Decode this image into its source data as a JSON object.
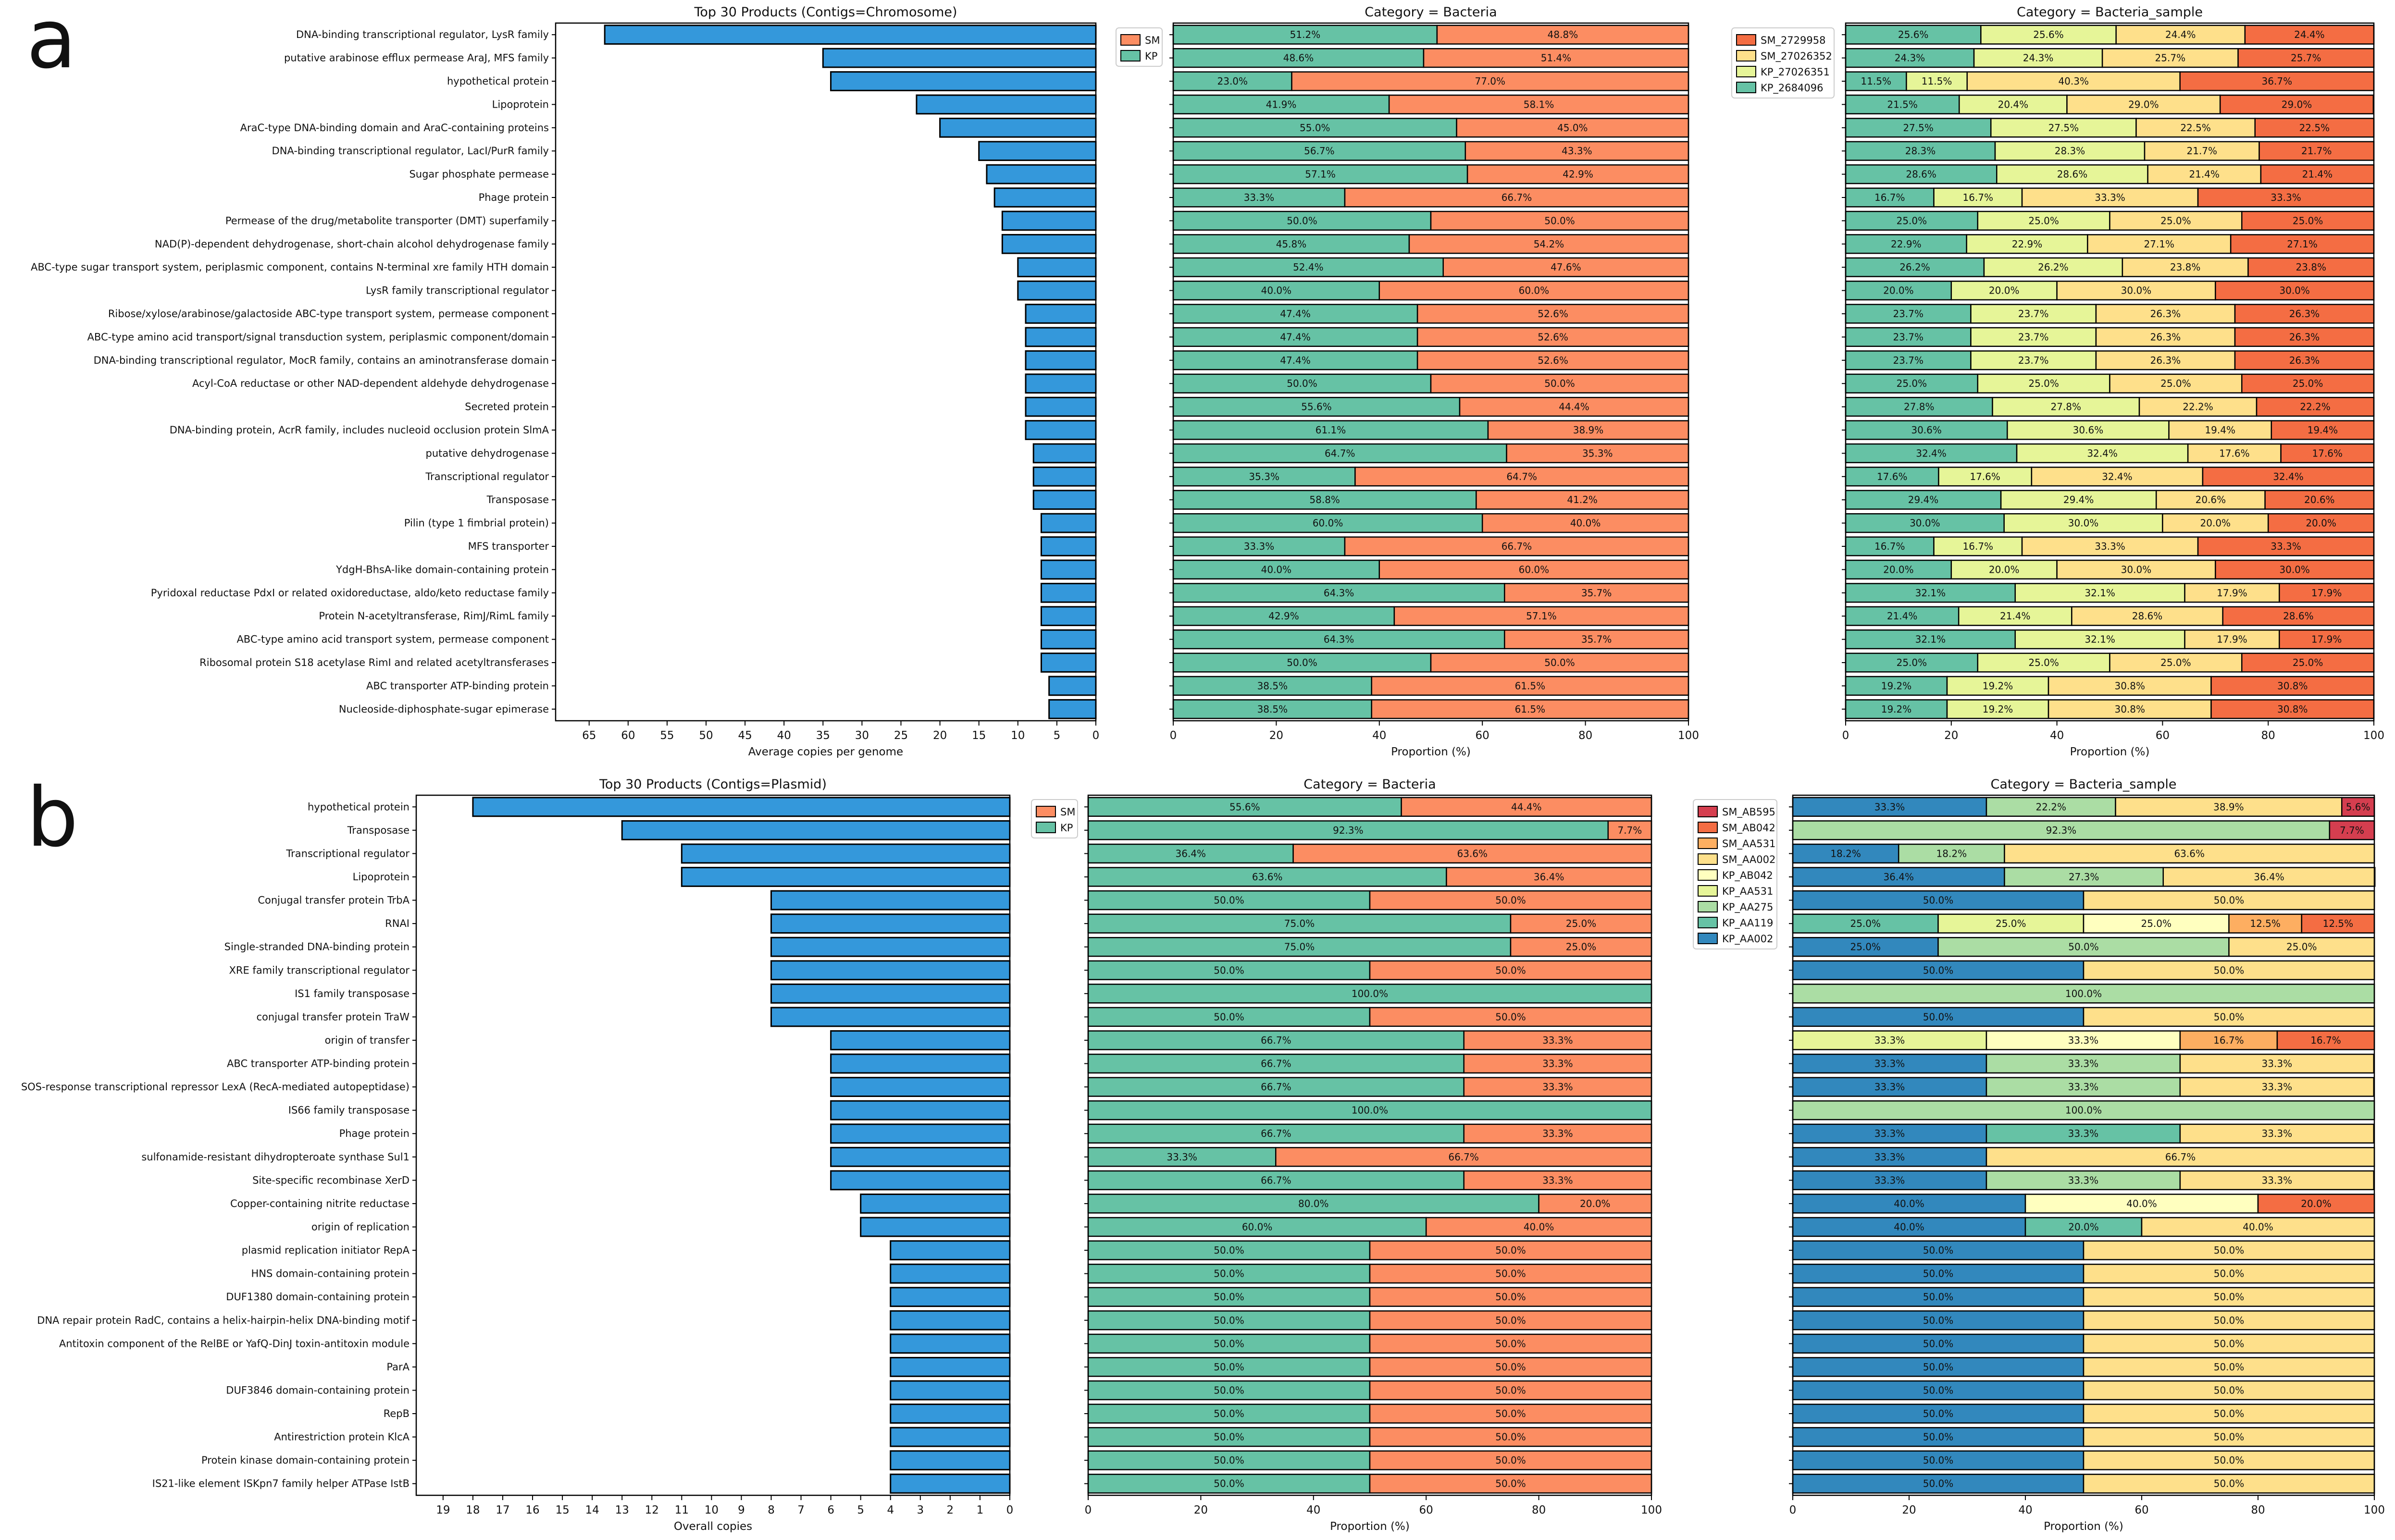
{
  "panel_labels": [
    "a",
    "b"
  ],
  "colors": {
    "bar": "#3498db",
    "SM": "#fc8d62",
    "KP": "#66c2a5"
  },
  "chart_data": [
    {
      "id": "a_products",
      "type": "bar",
      "orientation": "horizontal",
      "inverted_x": true,
      "title": "Top 30 Products (Contigs=Chromosome)",
      "xlabel": "Average copies per genome",
      "xlim": [
        0,
        69.3
      ],
      "xticks": [
        65,
        60,
        55,
        50,
        45,
        40,
        35,
        30,
        25,
        20,
        15,
        10,
        5,
        0
      ],
      "categories": [
        "DNA-binding transcriptional regulator, LysR family",
        "putative arabinose efflux permease AraJ, MFS family",
        "hypothetical protein",
        "Lipoprotein",
        "AraC-type DNA-binding domain and AraC-containing proteins",
        "DNA-binding transcriptional regulator, LacI/PurR family",
        "Sugar phosphate permease",
        "Phage protein",
        "Permease of the drug/metabolite transporter (DMT) superfamily",
        "NAD(P)-dependent dehydrogenase, short-chain alcohol dehydrogenase family",
        "ABC-type sugar transport system, periplasmic component, contains N-terminal xre family HTH domain",
        "LysR family transcriptional regulator",
        "Ribose/xylose/arabinose/galactoside ABC-type transport system, permease component",
        "ABC-type amino acid transport/signal transduction system, periplasmic component/domain",
        "DNA-binding transcriptional regulator, MocR family, contains an aminotransferase domain",
        "Acyl-CoA reductase or other NAD-dependent aldehyde dehydrogenase",
        "Secreted protein",
        "DNA-binding protein, AcrR family, includes nucleoid occlusion protein SlmA",
        "putative dehydrogenase",
        "Transcriptional regulator",
        "Transposase",
        "Pilin (type 1 fimbrial protein)",
        "MFS transporter",
        "YdgH-BhsA-like domain-containing protein",
        "Pyridoxal reductase PdxI or related oxidoreductase, aldo/keto reductase family",
        "Protein N-acetyltransferase, RimJ/RimL family",
        "ABC-type amino acid transport system, permease component",
        "Ribosomal protein S18 acetylase RimI and related acetyltransferases",
        "ABC transporter ATP-binding protein",
        "Nucleoside-diphosphate-sugar epimerase"
      ],
      "values": [
        63,
        35,
        34,
        23,
        20,
        15,
        14,
        13,
        12,
        12,
        10,
        10,
        9,
        9,
        9,
        9,
        9,
        9,
        8,
        8,
        8,
        7,
        7,
        7,
        7,
        7,
        7,
        7,
        6,
        6
      ]
    },
    {
      "id": "a_bacteria",
      "type": "bar",
      "stacked": true,
      "orientation": "horizontal",
      "title": "Category = Bacteria",
      "xlabel": "Proportion (%)",
      "xlim": [
        0,
        100
      ],
      "xticks": [
        0,
        20,
        40,
        60,
        80,
        100
      ],
      "legend": [
        "SM",
        "KP"
      ],
      "legend_placement": "left-outside-top",
      "series": [
        {
          "name": "KP",
          "color": "#66c2a5",
          "values": [
            51.2,
            48.6,
            23.0,
            41.9,
            55.0,
            56.7,
            57.1,
            33.3,
            50.0,
            45.8,
            52.4,
            40.0,
            47.4,
            47.4,
            47.4,
            50.0,
            55.6,
            61.1,
            64.7,
            35.3,
            58.8,
            60.0,
            33.3,
            40.0,
            64.3,
            42.9,
            64.3,
            50.0,
            38.5,
            38.5
          ]
        },
        {
          "name": "SM",
          "color": "#fc8d62",
          "values": [
            48.8,
            51.4,
            77.0,
            58.1,
            45.0,
            43.3,
            42.9,
            66.7,
            50.0,
            54.2,
            47.6,
            60.0,
            52.6,
            52.6,
            52.6,
            50.0,
            44.4,
            38.9,
            35.3,
            64.7,
            41.2,
            40.0,
            66.7,
            60.0,
            35.7,
            57.1,
            35.7,
            50.0,
            61.5,
            61.5
          ]
        }
      ]
    },
    {
      "id": "a_sample",
      "type": "bar",
      "stacked": true,
      "orientation": "horizontal",
      "title": "Category = Bacteria_sample",
      "xlabel": "Proportion (%)",
      "xlim": [
        0,
        100
      ],
      "xticks": [
        0,
        20,
        40,
        60,
        80,
        100
      ],
      "legend": [
        "SM_2729958",
        "SM_27026352",
        "KP_27026351",
        "KP_2684096"
      ],
      "legend_placement": "left-outside-top",
      "series": [
        {
          "name": "KP_2684096",
          "color": "#66c2a5",
          "values": [
            25.6,
            24.3,
            11.5,
            21.5,
            27.5,
            28.3,
            28.6,
            16.7,
            25.0,
            22.9,
            26.2,
            20.0,
            23.7,
            23.7,
            23.7,
            25.0,
            27.8,
            30.6,
            32.4,
            17.6,
            29.4,
            30.0,
            16.7,
            20.0,
            32.1,
            21.4,
            32.1,
            25.0,
            19.2,
            19.2
          ]
        },
        {
          "name": "KP_27026351",
          "color": "#e6f598",
          "values": [
            25.6,
            24.3,
            11.5,
            20.4,
            27.5,
            28.3,
            28.6,
            16.7,
            25.0,
            22.9,
            26.2,
            20.0,
            23.7,
            23.7,
            23.7,
            25.0,
            27.8,
            30.6,
            32.4,
            17.6,
            29.4,
            30.0,
            16.7,
            20.0,
            32.1,
            21.4,
            32.1,
            25.0,
            19.2,
            19.2
          ]
        },
        {
          "name": "SM_27026352",
          "color": "#fee08b",
          "values": [
            24.4,
            25.7,
            40.3,
            29.0,
            22.5,
            21.7,
            21.4,
            33.3,
            25.0,
            27.1,
            23.8,
            30.0,
            26.3,
            26.3,
            26.3,
            25.0,
            22.2,
            19.4,
            17.6,
            32.4,
            20.6,
            20.0,
            33.3,
            30.0,
            17.9,
            28.6,
            17.9,
            25.0,
            30.8,
            30.8
          ]
        },
        {
          "name": "SM_2729958",
          "color": "#f46d43",
          "values": [
            24.4,
            25.7,
            36.7,
            29.0,
            22.5,
            21.7,
            21.4,
            33.3,
            25.0,
            27.1,
            23.8,
            30.0,
            26.3,
            26.3,
            26.3,
            25.0,
            22.2,
            19.4,
            17.6,
            32.4,
            20.6,
            20.0,
            33.3,
            30.0,
            17.9,
            28.6,
            17.9,
            25.0,
            30.8,
            30.8
          ]
        }
      ]
    },
    {
      "id": "b_products",
      "type": "bar",
      "orientation": "horizontal",
      "inverted_x": true,
      "title": "Top 30 Products (Contigs=Plasmid)",
      "xlabel": "Overall copies",
      "xlim": [
        0,
        19.9
      ],
      "xticks": [
        19,
        18,
        17,
        16,
        15,
        14,
        13,
        12,
        11,
        10,
        9,
        8,
        7,
        6,
        5,
        4,
        3,
        2,
        1,
        0
      ],
      "categories": [
        "hypothetical protein",
        "Transposase",
        "Transcriptional regulator",
        "Lipoprotein",
        "Conjugal transfer protein TrbA",
        "RNAI",
        "Single-stranded DNA-binding protein",
        "XRE family transcriptional regulator",
        "IS1 family transposase",
        "conjugal transfer protein TraW",
        "origin of transfer",
        "ABC transporter ATP-binding protein",
        "SOS-response transcriptional repressor LexA (RecA-mediated autopeptidase)",
        "IS66 family transposase",
        "Phage protein",
        "sulfonamide-resistant dihydropteroate synthase Sul1",
        "Site-specific recombinase XerD",
        "Copper-containing nitrite reductase",
        "origin of replication",
        "plasmid replication initiator RepA",
        "HNS domain-containing protein",
        "DUF1380 domain-containing protein",
        "DNA repair protein RadC, contains a helix-hairpin-helix DNA-binding motif",
        "Antitoxin component of the RelBE or YafQ-DinJ toxin-antitoxin module",
        "ParA",
        "DUF3846 domain-containing protein",
        "RepB",
        "Antirestriction protein KlcA",
        "Protein kinase domain-containing protein",
        "IS21-like element ISKpn7 family helper ATPase IstB"
      ],
      "values": [
        18,
        13,
        11,
        11,
        8,
        8,
        8,
        8,
        8,
        8,
        6,
        6,
        6,
        6,
        6,
        6,
        6,
        5,
        5,
        4,
        4,
        4,
        4,
        4,
        4,
        4,
        4,
        4,
        4,
        4
      ]
    },
    {
      "id": "b_bacteria",
      "type": "bar",
      "stacked": true,
      "orientation": "horizontal",
      "title": "Category = Bacteria",
      "xlabel": "Proportion (%)",
      "xlim": [
        0,
        100
      ],
      "xticks": [
        0,
        20,
        40,
        60,
        80,
        100
      ],
      "legend": [
        "SM",
        "KP"
      ],
      "legend_placement": "left-outside-top",
      "series": [
        {
          "name": "KP",
          "color": "#66c2a5",
          "values": [
            55.6,
            92.3,
            36.4,
            63.6,
            50.0,
            75.0,
            75.0,
            50.0,
            100.0,
            50.0,
            66.7,
            66.7,
            66.7,
            100.0,
            66.7,
            33.3,
            66.7,
            80.0,
            60.0,
            50.0,
            50.0,
            50.0,
            50.0,
            50.0,
            50.0,
            50.0,
            50.0,
            50.0,
            50.0,
            50.0
          ]
        },
        {
          "name": "SM",
          "color": "#fc8d62",
          "values": [
            44.4,
            7.7,
            63.6,
            36.4,
            50.0,
            25.0,
            25.0,
            50.0,
            0,
            50.0,
            33.3,
            33.3,
            33.3,
            0,
            33.3,
            66.7,
            33.3,
            20.0,
            40.0,
            50.0,
            50.0,
            50.0,
            50.0,
            50.0,
            50.0,
            50.0,
            50.0,
            50.0,
            50.0,
            50.0
          ]
        }
      ]
    },
    {
      "id": "b_sample",
      "type": "bar",
      "stacked": true,
      "orientation": "horizontal",
      "title": "Category = Bacteria_sample",
      "xlabel": "Proportion (%)",
      "xlim": [
        0,
        100
      ],
      "xticks": [
        0,
        20,
        40,
        60,
        80,
        100
      ],
      "legend": [
        "SM_AB595",
        "SM_AB042",
        "SM_AA531",
        "SM_AA002",
        "KP_AB042",
        "KP_AA531",
        "KP_AA275",
        "KP_AA119",
        "KP_AA002"
      ],
      "legend_placement": "left-outside-top",
      "series": [
        {
          "name": "KP_AA002",
          "color": "#3288bd",
          "values": [
            33.3,
            0,
            18.2,
            36.4,
            50.0,
            0,
            25.0,
            50.0,
            0,
            50.0,
            0,
            33.3,
            33.3,
            0,
            33.3,
            33.3,
            33.3,
            40.0,
            40.0,
            50.0,
            50.0,
            50.0,
            50.0,
            50.0,
            50.0,
            50.0,
            50.0,
            50.0,
            50.0,
            50.0
          ]
        },
        {
          "name": "KP_AA119",
          "color": "#66c2a5",
          "values": [
            0,
            0,
            0,
            0,
            0,
            25.0,
            0,
            0,
            0,
            0,
            0,
            0,
            0,
            0,
            33.3,
            0,
            0,
            0,
            20.0,
            0,
            0,
            0,
            0,
            0,
            0,
            0,
            0,
            0,
            0,
            0
          ]
        },
        {
          "name": "KP_AA275",
          "color": "#abdda4",
          "values": [
            22.2,
            92.3,
            18.2,
            27.3,
            0,
            0,
            50.0,
            0,
            100.0,
            0,
            0,
            33.3,
            33.3,
            100.0,
            0,
            0,
            33.3,
            0,
            0,
            0,
            0,
            0,
            0,
            0,
            0,
            0,
            0,
            0,
            0,
            0
          ]
        },
        {
          "name": "KP_AA531",
          "color": "#e6f598",
          "values": [
            0,
            0,
            0,
            0,
            0,
            25.0,
            0,
            0,
            0,
            0,
            33.3,
            0,
            0,
            0,
            0,
            0,
            0,
            0,
            0,
            0,
            0,
            0,
            0,
            0,
            0,
            0,
            0,
            0,
            0,
            0
          ]
        },
        {
          "name": "KP_AB042",
          "color": "#ffffbf",
          "values": [
            0,
            0,
            0,
            0,
            0,
            25.0,
            0,
            0,
            0,
            0,
            33.3,
            0,
            0,
            0,
            0,
            0,
            0,
            40.0,
            0,
            0,
            0,
            0,
            0,
            0,
            0,
            0,
            0,
            0,
            0,
            0
          ]
        },
        {
          "name": "SM_AA002",
          "color": "#fee08b",
          "values": [
            38.9,
            0,
            63.6,
            36.4,
            50.0,
            0,
            25.0,
            50.0,
            0,
            50.0,
            0,
            33.3,
            33.3,
            0,
            33.3,
            66.7,
            33.3,
            0,
            40.0,
            50.0,
            50.0,
            50.0,
            50.0,
            50.0,
            50.0,
            50.0,
            50.0,
            50.0,
            50.0,
            50.0
          ]
        },
        {
          "name": "SM_AA531",
          "color": "#fdae61",
          "values": [
            0,
            0,
            0,
            0,
            0,
            12.5,
            0,
            0,
            0,
            0,
            16.7,
            0,
            0,
            0,
            0,
            0,
            0,
            0,
            0,
            0,
            0,
            0,
            0,
            0,
            0,
            0,
            0,
            0,
            0,
            0
          ]
        },
        {
          "name": "SM_AB042",
          "color": "#f46d43",
          "values": [
            0,
            0,
            0,
            0,
            0,
            12.5,
            0,
            0,
            0,
            0,
            16.7,
            0,
            0,
            0,
            0,
            0,
            0,
            20.0,
            0,
            0,
            0,
            0,
            0,
            0,
            0,
            0,
            0,
            0,
            0,
            0
          ]
        },
        {
          "name": "SM_AB595",
          "color": "#d53e4f",
          "values": [
            5.6,
            7.7,
            0,
            0,
            0,
            0,
            0,
            0,
            0,
            0,
            0,
            0,
            0,
            0,
            0,
            0,
            0,
            0,
            0,
            0,
            0,
            0,
            0,
            0,
            0,
            0,
            0,
            0,
            0,
            0
          ]
        }
      ]
    }
  ]
}
